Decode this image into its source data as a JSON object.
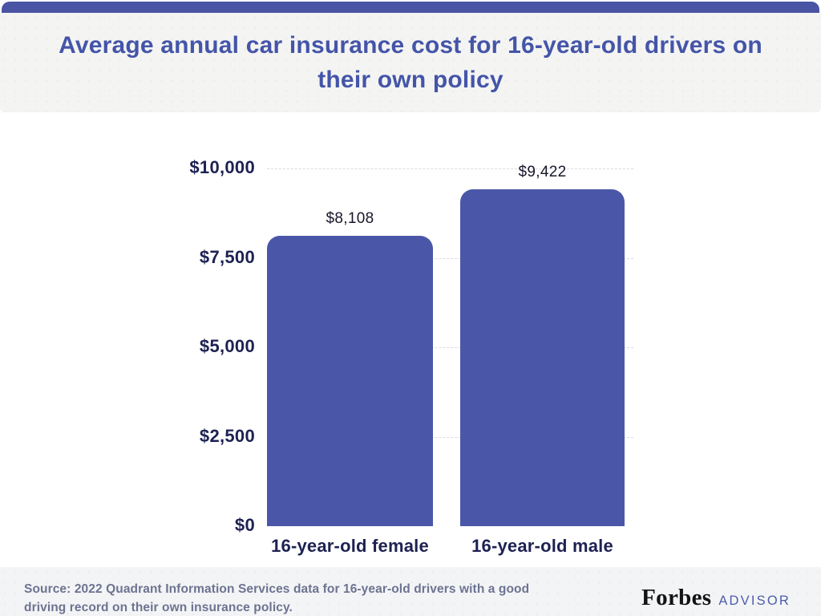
{
  "header": {
    "title": "Average annual car insurance cost for 16-year-old drivers on their own policy"
  },
  "chart_data": {
    "type": "bar",
    "title": "Average annual car insurance cost for 16-year-old drivers on their own policy",
    "categories": [
      "16-year-old female",
      "16-year-old male"
    ],
    "values": [
      8108,
      9422
    ],
    "value_labels": [
      "$8,108",
      "$9,422"
    ],
    "xlabel": "",
    "ylabel": "",
    "ylim": [
      0,
      10000
    ],
    "yticks": [
      {
        "value": 10000,
        "label": "$10,000"
      },
      {
        "value": 7500,
        "label": "$7,500"
      },
      {
        "value": 5000,
        "label": "$5,000"
      },
      {
        "value": 2500,
        "label": "$2,500"
      },
      {
        "value": 0,
        "label": "$0"
      }
    ],
    "grid": "horizontal dashed, behind bars",
    "legend": "none"
  },
  "footer": {
    "source": "Source: 2022 Quadrant Information Services data for 16-year-old drivers with a good driving record on their own insurance policy.",
    "brand_name": "Forbes",
    "brand_suffix": "ADVISOR"
  },
  "colors": {
    "accent_bar": "#4a54a4",
    "bar_fill": "#4a57a8",
    "title_text": "#4455a8",
    "axis_text": "#1d2152",
    "value_label_text": "#17172b",
    "source_text": "#6d7390",
    "advisor_text": "#4d5cab",
    "header_bg": "#f4f4f3",
    "footer_bg": "#f3f4f6",
    "gridline": "#d9dae2"
  }
}
